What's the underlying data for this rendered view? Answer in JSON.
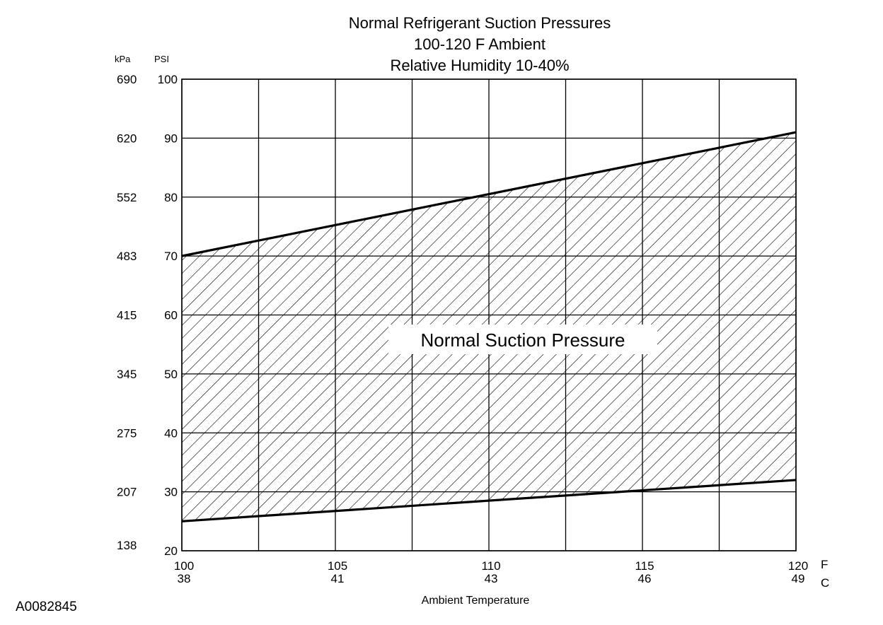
{
  "figure_id": "A0082845",
  "chart_data": {
    "type": "area",
    "title_lines": [
      "Normal  Refrigerant  Suction  Pressures",
      "100-120 F Ambient",
      "Relative Humidity 10-40%"
    ],
    "xlabel": "Ambient Temperature",
    "x_unit_labels": [
      "F",
      "C"
    ],
    "y_unit_labels": [
      "kPa",
      "PSI"
    ],
    "xlim": [
      100,
      120
    ],
    "ylim": [
      20,
      100
    ],
    "x_ticks_F": [
      "100",
      "105",
      "110",
      "115",
      "120"
    ],
    "x_ticks_C": [
      "38",
      "41",
      "43",
      "46",
      "49"
    ],
    "y_ticks_psi": [
      "20",
      "30",
      "40",
      "50",
      "60",
      "70",
      "80",
      "90",
      "100"
    ],
    "y_ticks_kpa": [
      "138",
      "207",
      "275",
      "345",
      "415",
      "483",
      "552",
      "620",
      "690"
    ],
    "x_minor_grid": [
      102.5,
      107.5,
      112.5,
      117.5
    ],
    "grid": true,
    "band_label": "Normal Suction Pressure",
    "series": [
      {
        "name": "",
        "role": "upper",
        "x": [
          100,
          120
        ],
        "values": [
          70,
          91
        ]
      },
      {
        "name": "",
        "role": "lower",
        "x": [
          100,
          120
        ],
        "values": [
          25,
          32
        ]
      }
    ]
  }
}
